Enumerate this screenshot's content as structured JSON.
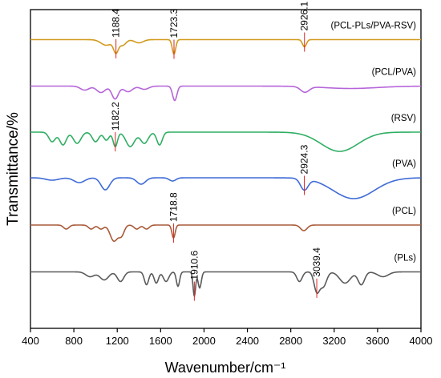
{
  "chart_data": {
    "type": "line",
    "title": "",
    "xlabel": "Wavenumber/cm⁻¹",
    "ylabel": "Transmittance/%",
    "xlim": [
      400,
      4000
    ],
    "xticks": [
      400,
      800,
      1200,
      1600,
      2000,
      2400,
      2800,
      3200,
      3600,
      4000
    ],
    "y_tick_labels": false,
    "grid": false,
    "legend": "labels placed at right end of each trace",
    "series": [
      {
        "name": "(PCL-PLs/PVA-RSV)",
        "color": "#d19a1c",
        "offset": 6,
        "baseline": 0.25,
        "features": [
          [
            1100,
            0.35,
            50
          ],
          [
            1188,
            0.75,
            22
          ],
          [
            1250,
            0.35,
            30
          ],
          [
            1400,
            0.2,
            40
          ],
          [
            1723,
            0.9,
            16
          ],
          [
            2926,
            0.45,
            18
          ]
        ]
      },
      {
        "name": "(PCL/PVA)",
        "color": "#b565d9",
        "offset": 5,
        "baseline": 0.25,
        "features": [
          [
            900,
            0.25,
            40
          ],
          [
            1050,
            0.4,
            40
          ],
          [
            1180,
            0.8,
            30
          ],
          [
            1300,
            0.35,
            40
          ],
          [
            1450,
            0.2,
            40
          ],
          [
            1730,
            0.9,
            20
          ],
          [
            2930,
            0.35,
            40
          ],
          [
            3350,
            0.15,
            250
          ]
        ]
      },
      {
        "name": "(RSV)",
        "color": "#2fae63",
        "offset": 4,
        "baseline": 0.2,
        "features": [
          [
            600,
            0.6,
            30
          ],
          [
            700,
            0.8,
            30
          ],
          [
            830,
            0.7,
            35
          ],
          [
            1000,
            0.6,
            30
          ],
          [
            1100,
            0.5,
            25
          ],
          [
            1182,
            0.9,
            20
          ],
          [
            1320,
            0.9,
            40
          ],
          [
            1450,
            0.7,
            35
          ],
          [
            1590,
            0.8,
            25
          ],
          [
            3250,
            1.2,
            170
          ]
        ]
      },
      {
        "name": "(PVA)",
        "color": "#3f6bd6",
        "offset": 3,
        "baseline": 0.1,
        "features": [
          [
            600,
            0.15,
            60
          ],
          [
            850,
            0.3,
            50
          ],
          [
            1090,
            0.75,
            40
          ],
          [
            1420,
            0.4,
            40
          ],
          [
            1710,
            0.2,
            30
          ],
          [
            2924.3,
            0.7,
            35
          ],
          [
            3380,
            1.3,
            190
          ]
        ]
      },
      {
        "name": "(PCL)",
        "color": "#a95a3a",
        "offset": 2,
        "baseline": 0.2,
        "features": [
          [
            730,
            0.25,
            25
          ],
          [
            960,
            0.25,
            25
          ],
          [
            1050,
            0.25,
            25
          ],
          [
            1170,
            1.0,
            35
          ],
          [
            1240,
            0.6,
            25
          ],
          [
            1380,
            0.25,
            25
          ],
          [
            1470,
            0.25,
            25
          ],
          [
            1718.8,
            0.8,
            15
          ],
          [
            2920,
            0.35,
            30
          ]
        ]
      },
      {
        "name": "(PLs)",
        "color": "#5a5a5a",
        "offset": 1,
        "baseline": 0.25,
        "features": [
          [
            950,
            0.3,
            40
          ],
          [
            1080,
            0.5,
            40
          ],
          [
            1230,
            0.6,
            30
          ],
          [
            1470,
            0.8,
            20
          ],
          [
            1560,
            0.7,
            20
          ],
          [
            1650,
            0.6,
            25
          ],
          [
            1760,
            0.9,
            15
          ],
          [
            1910.6,
            1.5,
            12
          ],
          [
            1960,
            1.0,
            15
          ],
          [
            2880,
            0.6,
            25
          ],
          [
            3039.4,
            1.2,
            25
          ],
          [
            3100,
            0.9,
            30
          ],
          [
            3300,
            0.7,
            50
          ],
          [
            3450,
            0.8,
            30
          ],
          [
            3650,
            0.3,
            50
          ]
        ]
      }
    ],
    "annotations": [
      {
        "text": "1188.4",
        "x": 1188.4,
        "series": 0
      },
      {
        "text": "1723.3",
        "x": 1723.3,
        "series": 0
      },
      {
        "text": "2926.1",
        "x": 2926.1,
        "series": 0
      },
      {
        "text": "1182.2",
        "x": 1182.2,
        "series": 2
      },
      {
        "text": "2924.3",
        "x": 2924.3,
        "series": 3
      },
      {
        "text": "1718.8",
        "x": 1718.8,
        "series": 4
      },
      {
        "text": "1910.6",
        "x": 1910.6,
        "series": 5
      },
      {
        "text": "3039.4",
        "x": 3039.4,
        "series": 5
      }
    ]
  }
}
